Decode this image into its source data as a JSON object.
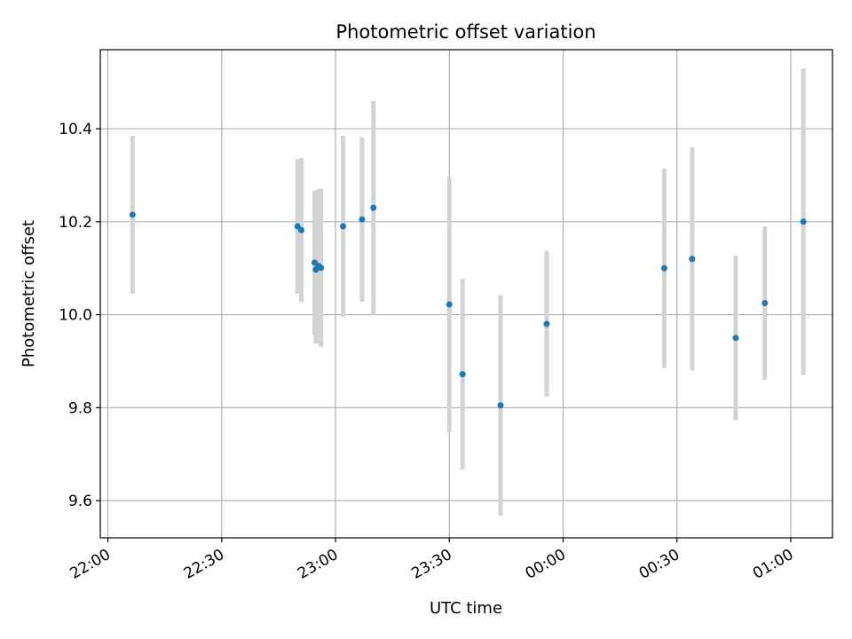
{
  "chart_data": {
    "type": "scatter",
    "title": "Photometric offset variation",
    "xlabel": "UTC time",
    "ylabel": "Photometric offset",
    "grid": true,
    "legend": "none",
    "x_axis_kind": "time",
    "xlim": [
      "21:58",
      "01:11"
    ],
    "ylim": [
      9.52,
      10.57
    ],
    "x_ticks": [
      "22:00",
      "22:30",
      "23:00",
      "23:30",
      "00:00",
      "00:30",
      "01:00"
    ],
    "y_ticks": [
      "9.6",
      "9.8",
      "10.0",
      "10.2",
      "10.4"
    ],
    "colors": {
      "points": "#1f77b4",
      "errorbars": "#d3d3d3",
      "grid": "#b0b0b0"
    },
    "series": [
      {
        "points": [
          {
            "x": "22:06:30",
            "y": 10.215,
            "err": 0.17
          },
          {
            "x": "22:50:00",
            "y": 10.19,
            "err": 0.145
          },
          {
            "x": "22:51:00",
            "y": 10.182,
            "err": 0.155
          },
          {
            "x": "22:54:30",
            "y": 10.112,
            "err": 0.155
          },
          {
            "x": "22:54:50",
            "y": 10.097,
            "err": 0.16
          },
          {
            "x": "22:55:30",
            "y": 10.105,
            "err": 0.165
          },
          {
            "x": "22:56:10",
            "y": 10.101,
            "err": 0.17
          },
          {
            "x": "23:02:00",
            "y": 10.19,
            "err": 0.195
          },
          {
            "x": "23:07:00",
            "y": 10.205,
            "err": 0.177
          },
          {
            "x": "23:10:00",
            "y": 10.23,
            "err": 0.23
          },
          {
            "x": "23:30:00",
            "y": 10.022,
            "err": 0.275
          },
          {
            "x": "23:33:30",
            "y": 9.872,
            "err": 0.205
          },
          {
            "x": "23:43:30",
            "y": 9.805,
            "err": 0.237
          },
          {
            "x": "23:55:40",
            "y": 9.98,
            "err": 0.157
          },
          {
            "x": "00:26:40",
            "y": 10.1,
            "err": 0.215
          },
          {
            "x": "00:34:00",
            "y": 10.12,
            "err": 0.24
          },
          {
            "x": "00:45:30",
            "y": 9.95,
            "err": 0.177
          },
          {
            "x": "00:53:10",
            "y": 10.025,
            "err": 0.165
          },
          {
            "x": "01:03:20",
            "y": 10.2,
            "err": 0.33
          }
        ]
      }
    ]
  }
}
